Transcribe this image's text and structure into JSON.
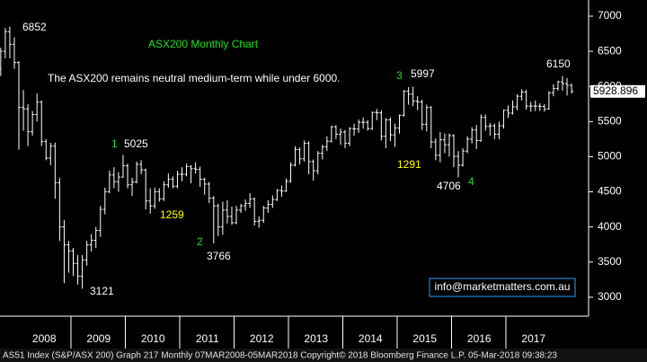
{
  "chart_data": {
    "type": "ohlc",
    "title": "ASX200 Monthly Chart",
    "title_color": "#22dd22",
    "subtitle": "The ASX200 remains neutral medium-term while under 6000.",
    "footer": "AS51 Index (S&P/ASX 200) Graph 217  Monthly 07MAR2008-05MAR2018   Copyright© 2018 Bloomberg Finance L.P.   05-Mar-2018 09:38:23",
    "watermark": "info@marketmatters.com.au",
    "last_value": 5928.896,
    "color": "#ffffff",
    "ylim": [
      2730,
      7230
    ],
    "yticks": [
      3000,
      3500,
      4000,
      4500,
      5000,
      5500,
      6000,
      6500,
      7000
    ],
    "xticks": [
      2008,
      2009,
      2010,
      2011,
      2012,
      2013,
      2014,
      2015,
      2016,
      2017
    ],
    "series": [
      {
        "name": "AS51 Index",
        "open": [
          6250,
          6500,
          6780,
          6600,
          6340,
          5700,
          5680,
          5355,
          5600,
          5775,
          5215,
          4980,
          5150,
          4630,
          4000,
          3745,
          3660,
          3480,
          3300,
          3530,
          3745,
          3810,
          3950,
          4250,
          4500,
          4740,
          4645,
          4710,
          4870,
          4600,
          4640,
          4890,
          4810,
          4370,
          4300,
          4500,
          4400,
          4600,
          4680,
          4580,
          4750,
          4750,
          4860,
          4830,
          4820,
          4680,
          4610,
          4410,
          4300,
          4000,
          4240,
          4150,
          4060,
          4240,
          4300,
          4335,
          4400,
          4080,
          4095,
          4270,
          4320,
          4390,
          4520,
          4510,
          4650,
          4880,
          5100,
          4970,
          5190,
          4930,
          4800,
          5050,
          5140,
          5220,
          5425,
          5320,
          5350,
          5190,
          5400,
          5395,
          5490,
          5490,
          5400,
          5630,
          5625,
          5290,
          5525,
          5310,
          5410,
          5590,
          5930,
          5890,
          5790,
          5780,
          5460,
          5700,
          5210,
          5020,
          5240,
          5170,
          5300,
          5005,
          4880,
          5080,
          5250,
          5380,
          5230,
          5560,
          5430,
          5440,
          5320,
          5440,
          5660,
          5620,
          5710,
          5860,
          5920,
          5720,
          5720,
          5720,
          5715,
          5680,
          5910,
          5970,
          6065,
          6040,
          6015
        ],
        "high": [
          6550,
          6830,
          6852,
          6700,
          6360,
          5950,
          5750,
          5650,
          5900,
          5800,
          5250,
          5200,
          5200,
          4700,
          4100,
          3800,
          3700,
          3600,
          3600,
          3800,
          3900,
          4000,
          4300,
          4560,
          4800,
          4850,
          4780,
          5025,
          4900,
          4700,
          4930,
          4950,
          4830,
          4550,
          4560,
          4550,
          4650,
          4760,
          4720,
          4800,
          4850,
          4900,
          4880,
          4920,
          4860,
          4700,
          4640,
          4440,
          4330,
          4360,
          4380,
          4290,
          4300,
          4330,
          4390,
          4480,
          4420,
          4150,
          4300,
          4380,
          4450,
          4540,
          4590,
          4690,
          4920,
          5150,
          5130,
          5230,
          5220,
          4960,
          5080,
          5170,
          5290,
          5440,
          5450,
          5400,
          5380,
          5420,
          5470,
          5530,
          5560,
          5520,
          5640,
          5680,
          5660,
          5550,
          5560,
          5470,
          5600,
          5950,
          5990,
          5997,
          5860,
          5810,
          5740,
          5720,
          5260,
          5350,
          5330,
          5330,
          5320,
          5080,
          5120,
          5290,
          5420,
          5450,
          5600,
          5600,
          5480,
          5470,
          5500,
          5670,
          5730,
          5800,
          5890,
          5960,
          5950,
          5780,
          5800,
          5760,
          5750,
          5930,
          6030,
          6080,
          6150,
          6120,
          6040
        ],
        "low": [
          6150,
          6400,
          6400,
          6250,
          5100,
          5370,
          5150,
          5300,
          5500,
          5150,
          4950,
          4880,
          4400,
          3800,
          3200,
          3350,
          3300,
          3180,
          3121,
          3450,
          3650,
          3700,
          3860,
          4180,
          4480,
          4550,
          4500,
          4700,
          4550,
          4440,
          4620,
          4750,
          4250,
          4190,
          4260,
          4360,
          4370,
          4560,
          4550,
          4550,
          4650,
          4720,
          4620,
          4760,
          4570,
          4460,
          4340,
          3766,
          3870,
          3890,
          4050,
          4030,
          4040,
          4200,
          4230,
          4270,
          4020,
          3990,
          4060,
          4200,
          4270,
          4370,
          4430,
          4500,
          4630,
          4860,
          4890,
          4930,
          4750,
          4660,
          4750,
          4960,
          5080,
          5200,
          5250,
          5170,
          5120,
          5150,
          5300,
          5340,
          5400,
          5370,
          5380,
          5520,
          5230,
          5120,
          5220,
          5140,
          5330,
          5570,
          5740,
          5720,
          5660,
          5380,
          5360,
          5120,
          4950,
          4920,
          5050,
          5000,
          4850,
          4706,
          4860,
          5050,
          5190,
          5110,
          5210,
          5370,
          5300,
          5250,
          5250,
          5400,
          5550,
          5600,
          5660,
          5800,
          5670,
          5640,
          5650,
          5650,
          5640,
          5670,
          5860,
          5940,
          5940,
          5870,
          5900
        ],
        "close": [
          6500,
          6780,
          6600,
          6340,
          5700,
          5680,
          5355,
          5600,
          5775,
          5215,
          4980,
          5150,
          4630,
          4000,
          3745,
          3660,
          3480,
          3300,
          3530,
          3745,
          3810,
          3950,
          4250,
          4500,
          4740,
          4645,
          4710,
          4870,
          4600,
          4640,
          4890,
          4810,
          4370,
          4300,
          4500,
          4400,
          4600,
          4680,
          4580,
          4750,
          4750,
          4860,
          4830,
          4820,
          4680,
          4610,
          4410,
          4300,
          4000,
          4240,
          4150,
          4060,
          4240,
          4300,
          4335,
          4400,
          4080,
          4095,
          4270,
          4320,
          4390,
          4520,
          4510,
          4650,
          4880,
          5100,
          4970,
          5190,
          4930,
          4800,
          5050,
          5140,
          5220,
          5425,
          5320,
          5350,
          5190,
          5400,
          5395,
          5490,
          5490,
          5400,
          5630,
          5625,
          5290,
          5525,
          5310,
          5410,
          5590,
          5930,
          5890,
          5790,
          5780,
          5460,
          5700,
          5210,
          5020,
          5240,
          5170,
          5300,
          5005,
          4880,
          5080,
          5250,
          5380,
          5230,
          5560,
          5430,
          5440,
          5320,
          5440,
          5660,
          5620,
          5710,
          5860,
          5920,
          5720,
          5720,
          5720,
          5715,
          5680,
          5910,
          5970,
          6065,
          6040,
          6015,
          5929
        ]
      }
    ],
    "annotations": [
      {
        "text": "6852",
        "color": "#ffffff"
      },
      {
        "text": "1",
        "color": "#22dd22"
      },
      {
        "text": "5025",
        "color": "#ffffff"
      },
      {
        "text": "1259",
        "color": "#ffff00"
      },
      {
        "text": "2",
        "color": "#22dd22"
      },
      {
        "text": "3766",
        "color": "#ffffff"
      },
      {
        "text": "3121",
        "color": "#ffffff"
      },
      {
        "text": "3",
        "color": "#22dd22"
      },
      {
        "text": "5997",
        "color": "#ffffff"
      },
      {
        "text": "1291",
        "color": "#ffff00"
      },
      {
        "text": "4706",
        "color": "#ffffff"
      },
      {
        "text": "4",
        "color": "#22dd22"
      },
      {
        "text": "6150",
        "color": "#ffffff"
      }
    ]
  }
}
